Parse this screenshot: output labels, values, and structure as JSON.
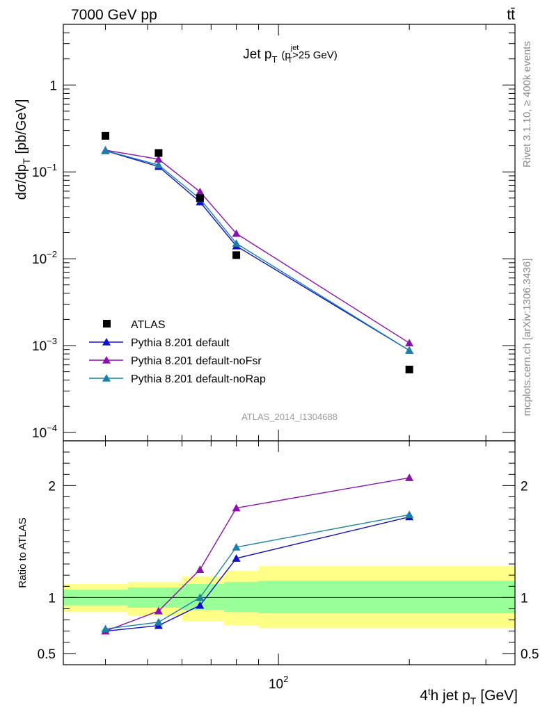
{
  "chart_data": {
    "type": "scatter",
    "header_left": "7000 GeV pp",
    "header_right": "tt̄",
    "title": "Jet p",
    "title_sub": "T",
    "title_cut_pre": "(p",
    "title_cut_sup": "jet",
    "title_cut_sub": "T",
    "title_cut_post": ">25 GeV)",
    "ylabel": "dσ/dp",
    "ylabel_sub": "T",
    "ylabel_unit": "[pb/GeV]",
    "xlabel_pre": "4",
    "xlabel_sup": "t",
    "xlabel_mid": "h jet p",
    "xlabel_sub": "T",
    "xlabel_unit": "[GeV]",
    "ratio_ylabel": "Ratio to ATLAS",
    "side_label_top": "Rivet 3.1.10, ≥ 400k events",
    "side_label_bottom": "mcplots.cern.ch [arXiv:1306.3436]",
    "watermark": "ATLAS_2014_I1304688",
    "x_scale": "log",
    "xlim": [
      32,
      350
    ],
    "y_scale": "log",
    "ylim": [
      8e-05,
      5
    ],
    "ratio_ylim": [
      0.4,
      2.4
    ],
    "y_ticks": [
      {
        "value": 1,
        "label": "1"
      },
      {
        "value": 0.1,
        "label": "10",
        "exp": "−1"
      },
      {
        "value": 0.01,
        "label": "10",
        "exp": "−2"
      },
      {
        "value": 0.001,
        "label": "10",
        "exp": "−3"
      },
      {
        "value": 0.0001,
        "label": "10",
        "exp": "−4"
      }
    ],
    "x_ticks": [
      {
        "value": 100,
        "label": "10",
        "exp": "2"
      }
    ],
    "ratio_ticks": [
      {
        "value": 0.5,
        "label": "0.5"
      },
      {
        "value": 1,
        "label": "1"
      },
      {
        "value": 2,
        "label": "2"
      }
    ],
    "bins": [
      [
        32,
        45
      ],
      [
        45,
        60
      ],
      [
        60,
        75
      ],
      [
        75,
        90
      ],
      [
        90,
        350
      ]
    ],
    "x": [
      40,
      53,
      66,
      80,
      200
    ],
    "data": {
      "name": "ATLAS",
      "values": [
        0.26,
        0.165,
        0.05,
        0.011,
        0.00053
      ],
      "band_stat": [
        [
          0.93,
          1.07
        ],
        [
          0.91,
          1.09
        ],
        [
          0.89,
          1.12
        ],
        [
          0.87,
          1.14
        ],
        [
          0.86,
          1.15
        ]
      ],
      "band_total": [
        [
          0.87,
          1.12
        ],
        [
          0.84,
          1.14
        ],
        [
          0.79,
          1.19
        ],
        [
          0.75,
          1.24
        ],
        [
          0.73,
          1.28
        ]
      ]
    },
    "series": [
      {
        "name": "Pythia 8.201 default",
        "color": "#1010c8",
        "values": [
          0.175,
          0.115,
          0.045,
          0.014,
          0.00088
        ],
        "ratio": [
          0.7,
          0.75,
          0.93,
          1.35,
          1.72
        ]
      },
      {
        "name": "Pythia 8.201 default-noFsr",
        "color": "#8a10b0",
        "values": [
          0.178,
          0.14,
          0.059,
          0.0195,
          0.00107
        ],
        "ratio": [
          0.7,
          0.88,
          1.25,
          1.8,
          2.07
        ]
      },
      {
        "name": "Pythia 8.201 default-noRap",
        "color": "#1a80a8",
        "values": [
          0.176,
          0.12,
          0.049,
          0.015,
          0.00088
        ],
        "ratio": [
          0.72,
          0.78,
          1.0,
          1.45,
          1.74
        ]
      }
    ],
    "colors": {
      "stat_band": "#99ff99",
      "total_band": "#ffff88"
    }
  }
}
